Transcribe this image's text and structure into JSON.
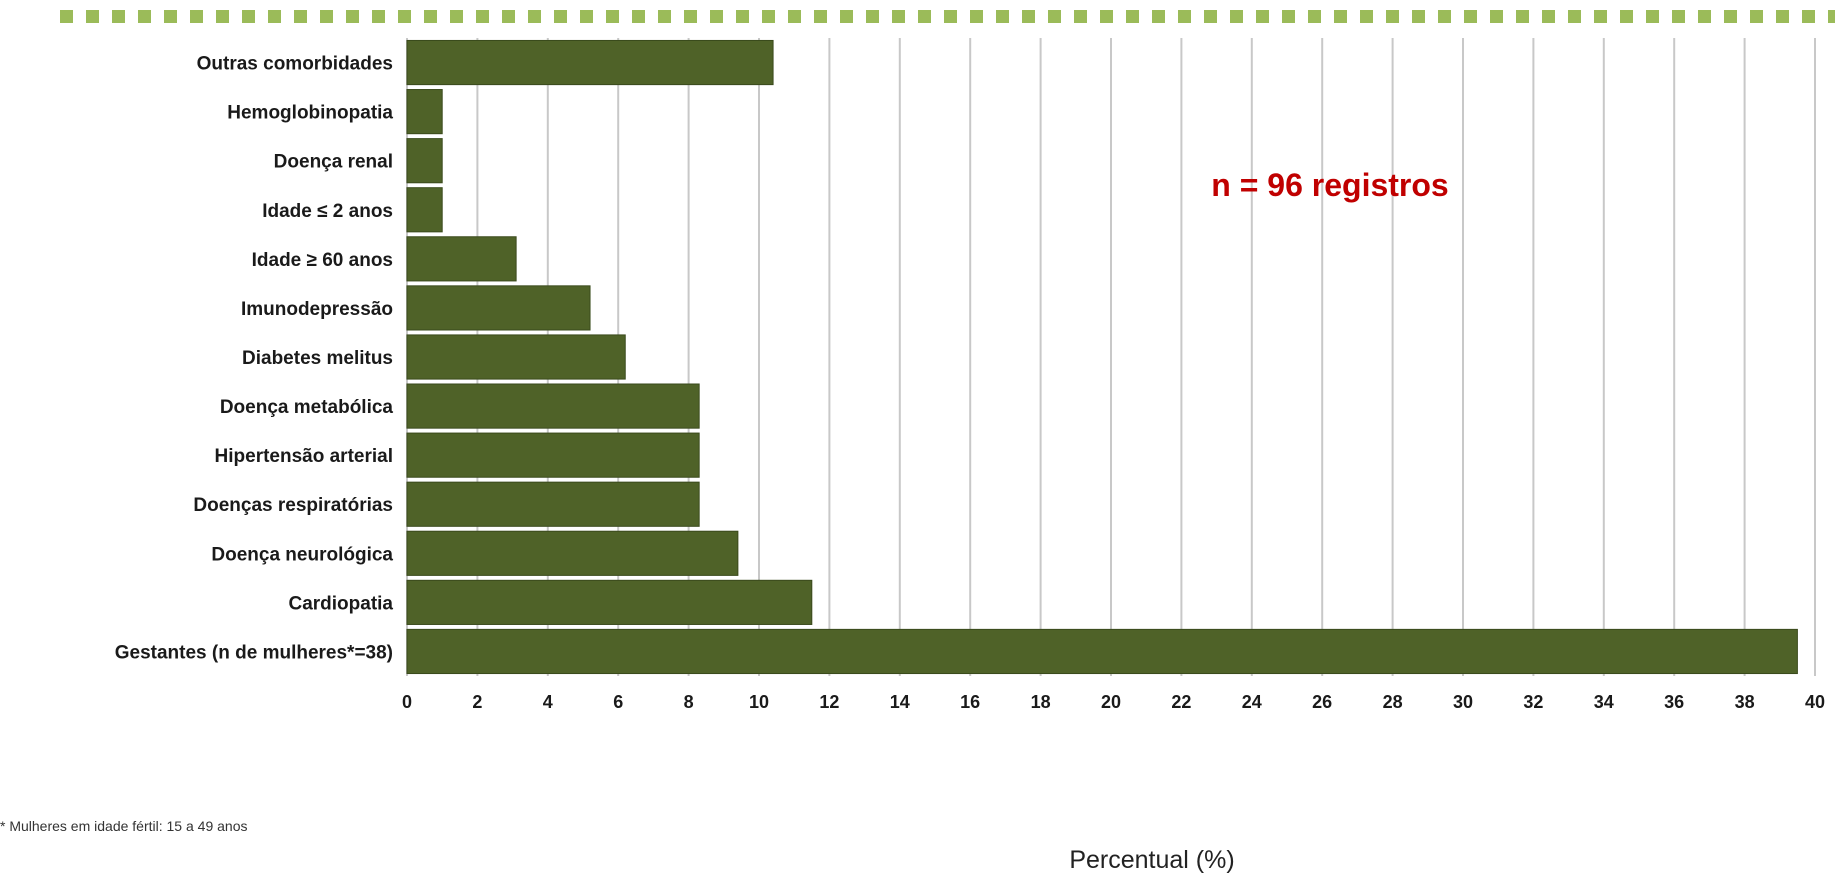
{
  "colors": {
    "bar": "#4f6228",
    "bar_border": "#3a4a1c",
    "grid": "#c8c8c8",
    "annotation": "#c00000",
    "top_dashes": "#9bbb59"
  },
  "chart_data": {
    "type": "bar",
    "orientation": "horizontal",
    "categories": [
      "Outras comorbidades",
      "Hemoglobinopatia",
      "Doença renal",
      "Idade ≤ 2 anos",
      "Idade ≥ 60 anos",
      "Imunodepressão",
      "Diabetes melitus",
      "Doença metabólica",
      "Hipertensão arterial",
      "Doenças respiratórias",
      "Doença neurológica",
      "Cardiopatia",
      "Gestantes (n de mulheres*=38)"
    ],
    "values": [
      10.4,
      1.0,
      1.0,
      1.0,
      3.1,
      5.2,
      6.2,
      8.3,
      8.3,
      8.3,
      9.4,
      11.5,
      39.5
    ],
    "xlim": [
      0,
      40
    ],
    "xticks": [
      "0",
      "2",
      "4",
      "6",
      "8",
      "10",
      "12",
      "14",
      "16",
      "18",
      "20",
      "22",
      "24",
      "26",
      "28",
      "30",
      "32",
      "34",
      "36",
      "38",
      "40"
    ],
    "xlabel": "Percentual (%)",
    "ylabel": "",
    "title": "",
    "grid": "vertical",
    "legend": "none",
    "annotation": "n = 96 registros",
    "footnote": "* Mulheres em idade fértil: 15 a 49 anos"
  }
}
